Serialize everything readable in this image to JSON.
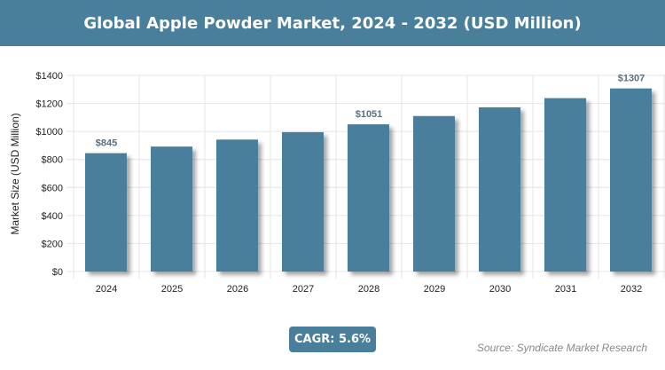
{
  "header": {
    "title": "Global Apple Powder Market, 2024 - 2032 (USD Million)"
  },
  "chart_data": {
    "type": "bar",
    "title": "Global Apple Powder Market, 2024 - 2032 (USD Million)",
    "xlabel": "",
    "ylabel": "Market Size (USD Million)",
    "categories": [
      "2024",
      "2025",
      "2026",
      "2027",
      "2028",
      "2029",
      "2030",
      "2031",
      "2032"
    ],
    "values": [
      845,
      892,
      942,
      995,
      1051,
      1110,
      1172,
      1238,
      1307
    ],
    "data_labels": {
      "0": "$845",
      "4": "$1051",
      "8": "$1307"
    },
    "ylim": [
      0,
      1400
    ],
    "yticks": [
      "$0",
      "$200",
      "$400",
      "$600",
      "$800",
      "$1000",
      "$1200",
      "$1400"
    ],
    "grid": true,
    "bar_color": "#4a7f9c"
  },
  "footer": {
    "cagr": "CAGR: 5.6%",
    "source": "Source: Syndicate Market Research"
  }
}
